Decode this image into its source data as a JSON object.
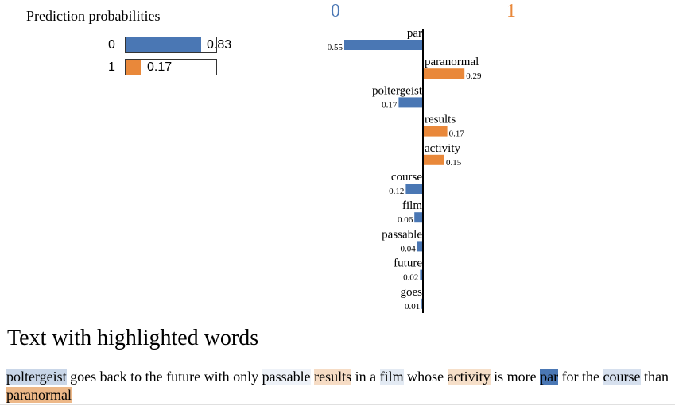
{
  "prediction": {
    "title": "Prediction probabilities",
    "classes": [
      {
        "label": "0",
        "value": 0.83,
        "value_text": "0.83",
        "color": "#4a77b4"
      },
      {
        "label": "1",
        "value": 0.17,
        "value_text": "0.17",
        "color": "#e9883a"
      }
    ]
  },
  "chart_data": {
    "type": "bar",
    "orientation": "horizontal",
    "class_labels": [
      "0",
      "1"
    ],
    "class_colors": {
      "0": "#4a77b4",
      "1": "#e9883a"
    },
    "features": [
      {
        "word": "par",
        "weight": 0.55,
        "label": "0.55",
        "class": "0"
      },
      {
        "word": "paranormal",
        "weight": 0.29,
        "label": "0.29",
        "class": "1"
      },
      {
        "word": "poltergeist",
        "weight": 0.17,
        "label": "0.17",
        "class": "0"
      },
      {
        "word": "results",
        "weight": 0.17,
        "label": "0.17",
        "class": "1"
      },
      {
        "word": "activity",
        "weight": 0.15,
        "label": "0.15",
        "class": "1"
      },
      {
        "word": "course",
        "weight": 0.12,
        "label": "0.12",
        "class": "0"
      },
      {
        "word": "film",
        "weight": 0.06,
        "label": "0.06",
        "class": "0"
      },
      {
        "word": "passable",
        "weight": 0.04,
        "label": "0.04",
        "class": "0"
      },
      {
        "word": "future",
        "weight": 0.02,
        "label": "0.02",
        "class": "0"
      },
      {
        "word": "goes",
        "weight": 0.01,
        "label": "0.01",
        "class": "0"
      }
    ]
  },
  "explanation": {
    "title": "Text with highlighted words",
    "tokens": [
      {
        "text": "poltergeist",
        "color": "#c9d6e8"
      },
      {
        "text": " goes back to the future with only ",
        "color": ""
      },
      {
        "text": "passable",
        "color": "#eef2f8"
      },
      {
        "text": " ",
        "color": ""
      },
      {
        "text": "results",
        "color": "#f6dcc5"
      },
      {
        "text": " in a ",
        "color": ""
      },
      {
        "text": "film",
        "color": "#e3eaf3"
      },
      {
        "text": " whose ",
        "color": ""
      },
      {
        "text": "activity",
        "color": "#f6dfc9"
      },
      {
        "text": " is more ",
        "color": ""
      },
      {
        "text": "par",
        "color": "#4a77b4"
      },
      {
        "text": " for the ",
        "color": ""
      },
      {
        "text": "course",
        "color": "#d6e0ee"
      },
      {
        "text": " than ",
        "color": ""
      },
      {
        "text": "paranormal",
        "color": "#edb888"
      }
    ]
  }
}
